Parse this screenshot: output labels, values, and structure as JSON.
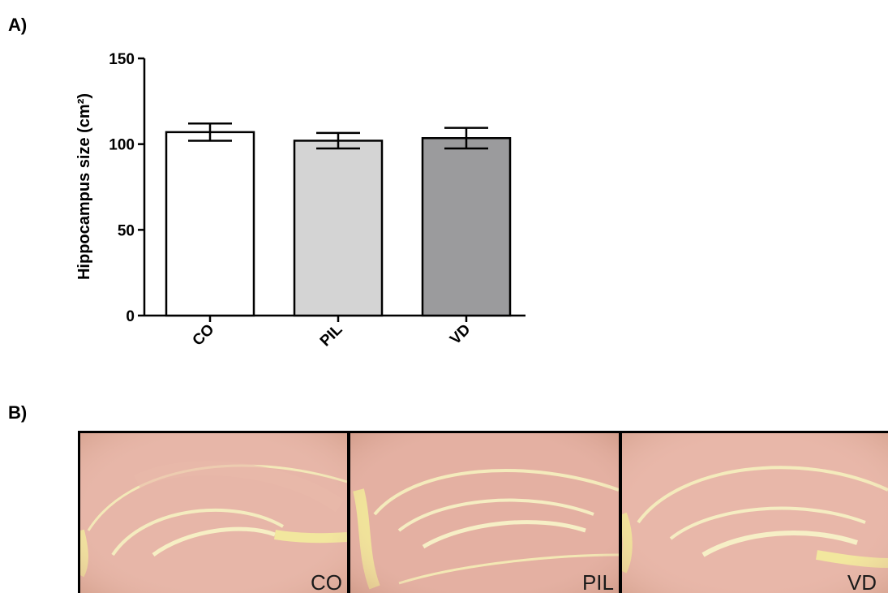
{
  "panels": {
    "a_label": "A)",
    "b_label": "B)"
  },
  "chart_data": {
    "type": "bar",
    "title": "",
    "xlabel": "",
    "ylabel": "Hippocampus size (cm²)",
    "ylim": [
      0,
      150
    ],
    "yticks": [
      "0",
      "50",
      "100",
      "150"
    ],
    "categories": [
      "CO",
      "PIL",
      "VD"
    ],
    "values": [
      107,
      102,
      103.5
    ],
    "errors": [
      5,
      4.5,
      6
    ],
    "bar_colors": [
      "#ffffff",
      "#d4d4d4",
      "#9b9b9d"
    ],
    "grid": false,
    "legend": "none"
  },
  "micrographs": {
    "labels": [
      "CO",
      "PIL",
      "VD"
    ],
    "tissue_color": "#e6b2a6",
    "gap_color": "#f2e6a8",
    "border_color": "#000000"
  }
}
